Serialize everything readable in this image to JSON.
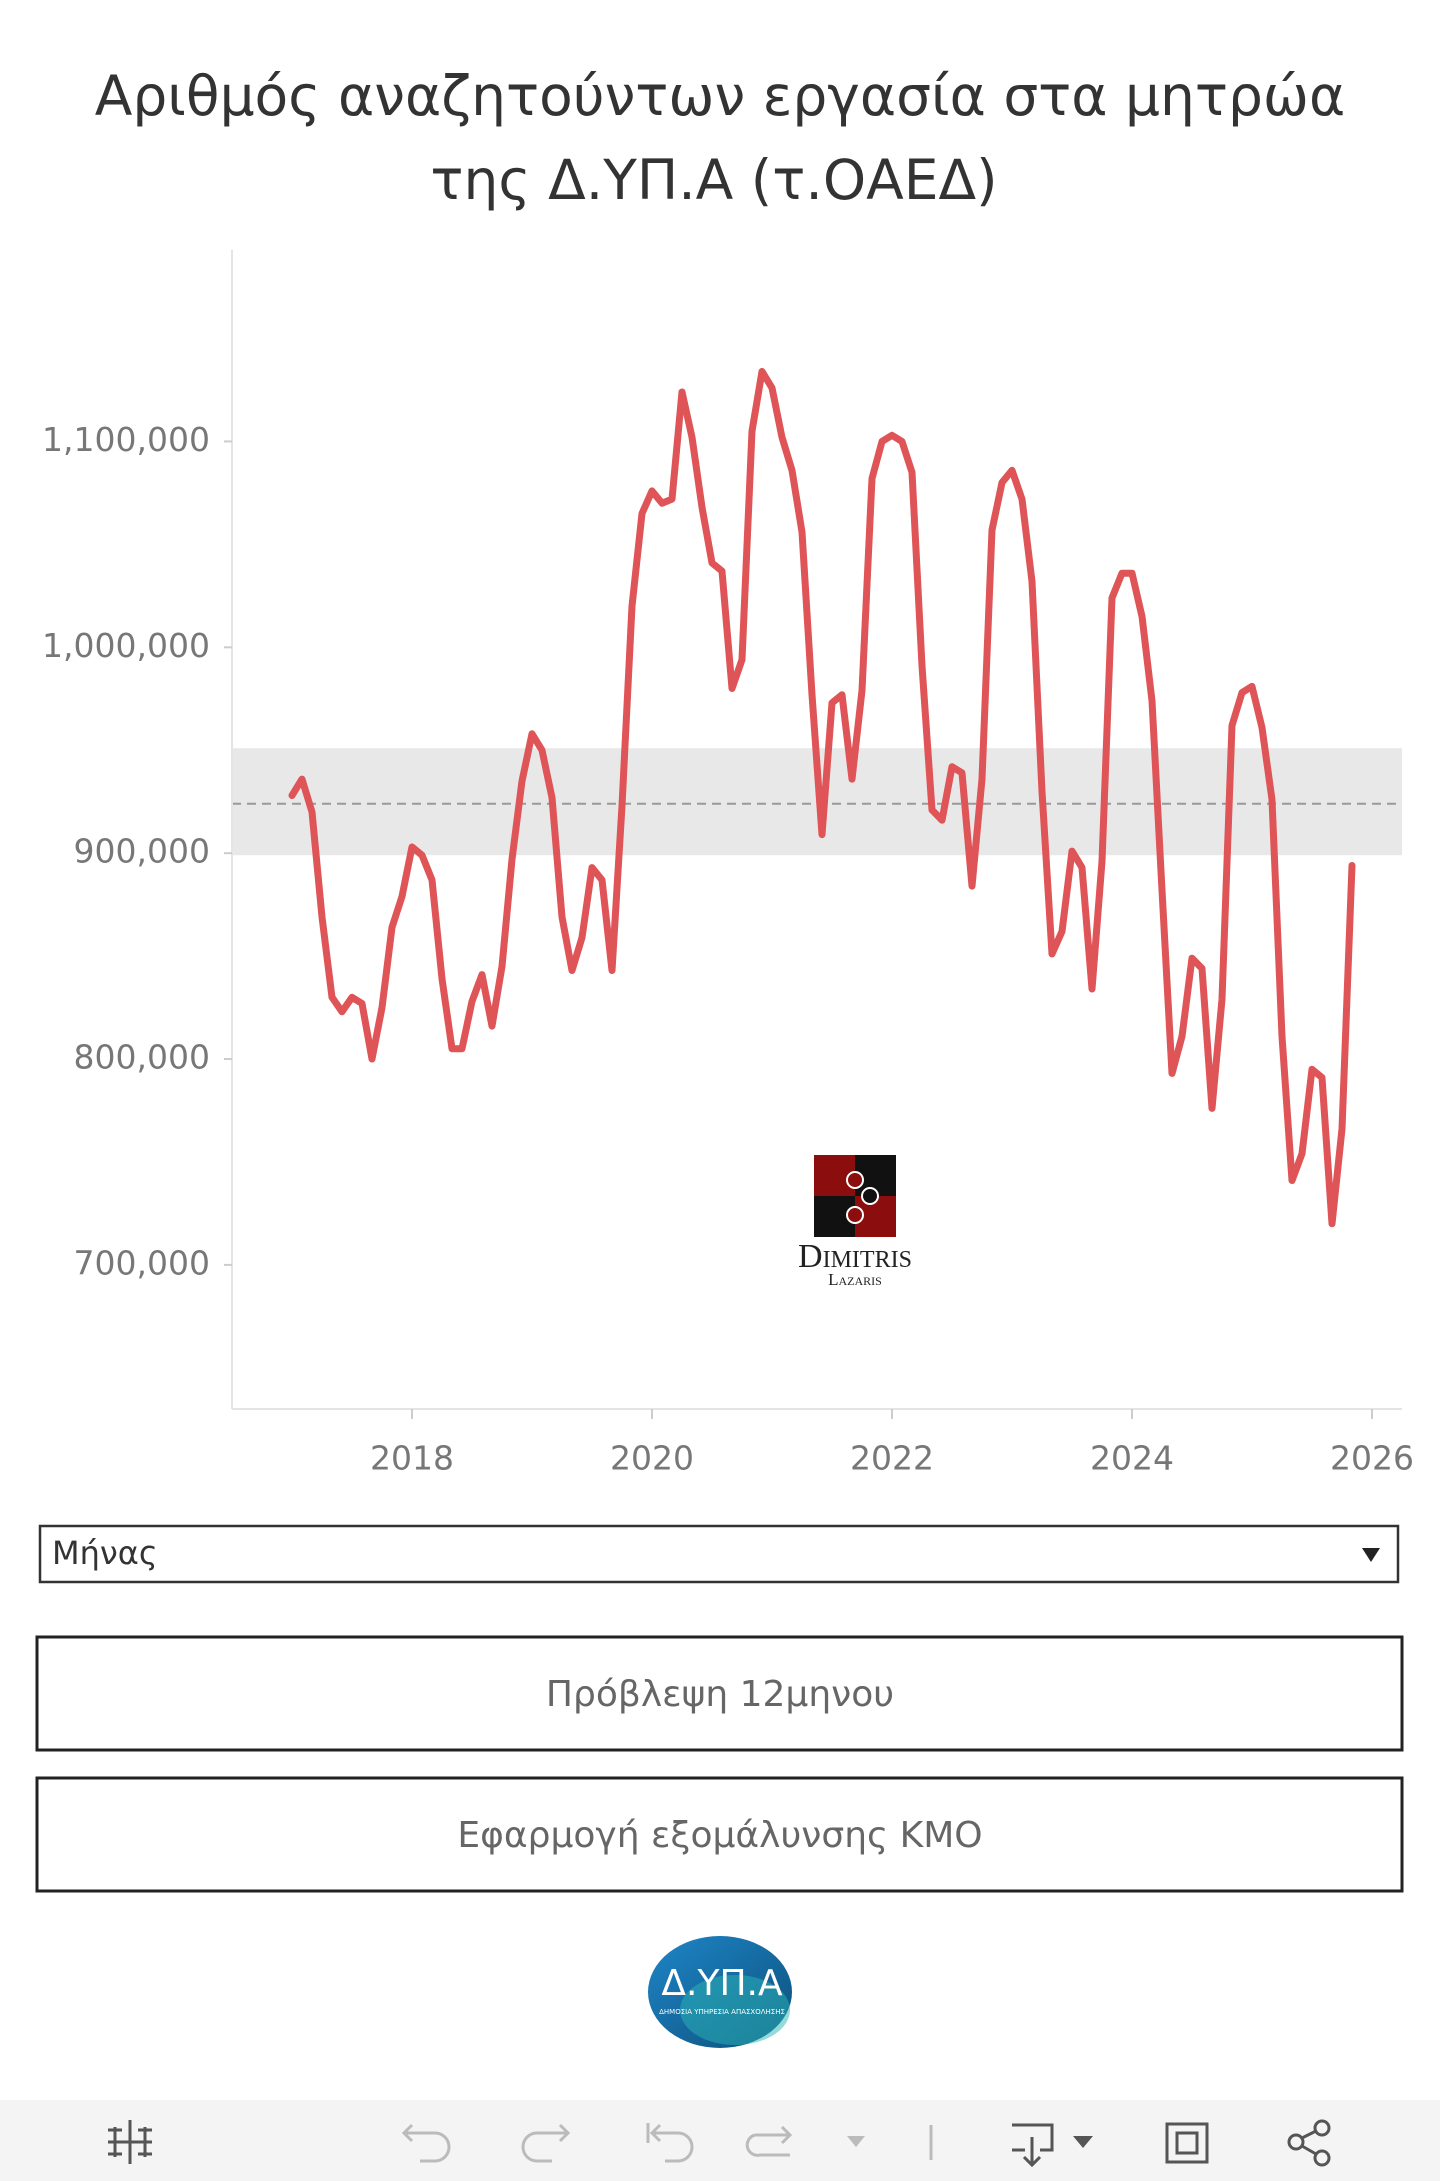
{
  "chart_data": {
    "type": "line",
    "title": [
      "Αριθμός αναζητούντων εργασία στα μητρώα",
      "της Δ.ΥΠ.Α (τ.ΟΑΕΔ)"
    ],
    "color": "#de5457",
    "x": [
      "2017-01",
      "2017-02",
      "2017-03",
      "2017-04",
      "2017-05",
      "2017-06",
      "2017-07",
      "2017-08",
      "2017-09",
      "2017-10",
      "2017-11",
      "2017-12",
      "2018-01",
      "2018-02",
      "2018-03",
      "2018-04",
      "2018-05",
      "2018-06",
      "2018-07",
      "2018-08",
      "2018-09",
      "2018-10",
      "2018-11",
      "2018-12",
      "2019-01",
      "2019-02",
      "2019-03",
      "2019-04",
      "2019-05",
      "2019-06",
      "2019-07",
      "2019-08",
      "2019-09",
      "2019-10",
      "2019-11",
      "2019-12",
      "2020-01",
      "2020-02",
      "2020-03",
      "2020-04",
      "2020-05",
      "2020-06",
      "2020-07",
      "2020-08",
      "2020-09",
      "2020-10",
      "2020-11",
      "2020-12",
      "2021-01",
      "2021-02",
      "2021-03",
      "2021-04",
      "2021-05",
      "2021-06",
      "2021-07",
      "2021-08",
      "2021-09",
      "2021-10",
      "2021-11",
      "2021-12",
      "2022-01",
      "2022-02",
      "2022-03",
      "2022-04",
      "2022-05",
      "2022-06",
      "2022-07",
      "2022-08",
      "2022-09",
      "2022-10",
      "2022-11",
      "2022-12",
      "2023-01",
      "2023-02",
      "2023-03",
      "2023-04",
      "2023-05",
      "2023-06",
      "2023-07",
      "2023-08",
      "2023-09",
      "2023-10",
      "2023-11",
      "2023-12",
      "2024-01",
      "2024-02",
      "2024-03",
      "2024-04",
      "2024-05",
      "2024-06",
      "2024-07",
      "2024-08",
      "2024-09",
      "2024-10",
      "2024-11",
      "2024-12",
      "2025-01",
      "2025-02",
      "2025-03",
      "2025-04",
      "2025-05",
      "2025-06",
      "2025-07",
      "2025-08",
      "2025-09",
      "2025-10",
      "2025-11"
    ],
    "values": [
      928000,
      936000,
      920000,
      869000,
      830000,
      823000,
      830000,
      827000,
      800000,
      825000,
      864000,
      879000,
      903000,
      899000,
      887000,
      839000,
      805000,
      805000,
      828000,
      841000,
      816000,
      845000,
      897000,
      935000,
      958000,
      950000,
      927000,
      869000,
      843000,
      859000,
      893000,
      887000,
      843000,
      923000,
      1020000,
      1065000,
      1076000,
      1070000,
      1072000,
      1124000,
      1102000,
      1068000,
      1041000,
      1037000,
      980000,
      994000,
      1105000,
      1134000,
      1126000,
      1102000,
      1086000,
      1056000,
      977000,
      909000,
      973000,
      977000,
      936000,
      979000,
      1082000,
      1100000,
      1103000,
      1100000,
      1085000,
      991000,
      921000,
      916000,
      942000,
      939000,
      884000,
      936000,
      1057000,
      1080000,
      1086000,
      1072000,
      1032000,
      930000,
      851000,
      862000,
      901000,
      893000,
      834000,
      896000,
      1024000,
      1036000,
      1036000,
      1015000,
      974000,
      882000,
      793000,
      811000,
      849000,
      844000,
      776000,
      829000,
      962000,
      978000,
      981000,
      961000,
      926000,
      811000,
      741000,
      754000,
      795000,
      791000,
      720000,
      766000,
      894000
    ],
    "xlim": [
      "2016-07",
      "2026-04"
    ],
    "xticks": [
      {
        "value": "2018-01",
        "label": "2018"
      },
      {
        "value": "2020-01",
        "label": "2020"
      },
      {
        "value": "2022-01",
        "label": "2022"
      },
      {
        "value": "2024-01",
        "label": "2024"
      },
      {
        "value": "2026-01",
        "label": "2026"
      }
    ],
    "ylim": [
      630000,
      1193000
    ],
    "yticks": [
      {
        "value": 700000,
        "label": "700,000"
      },
      {
        "value": 800000,
        "label": "800,000"
      },
      {
        "value": 900000,
        "label": "900,000"
      },
      {
        "value": 1000000,
        "label": "1,000,000"
      },
      {
        "value": 1100000,
        "label": "1,100,000"
      }
    ],
    "grid": false,
    "reference_line": 924000,
    "reference_band": [
      899000,
      951000
    ],
    "watermark": [
      "Dimitris",
      "Lazaris"
    ]
  },
  "controls": {
    "dropdown": "Μήνας",
    "buttons": [
      "Πρόβλεψη 12μηνου",
      "Εφαρμογή εξομάλυνσης ΚΜΟ"
    ]
  },
  "logo": {
    "name": "Δ.ΥΠ.Α",
    "subtitle": "ΔΗΜΟΣΙΑ ΥΠΗΡΕΣΙΑ ΑΠΑΣΧΟΛΗΣΗΣ"
  }
}
